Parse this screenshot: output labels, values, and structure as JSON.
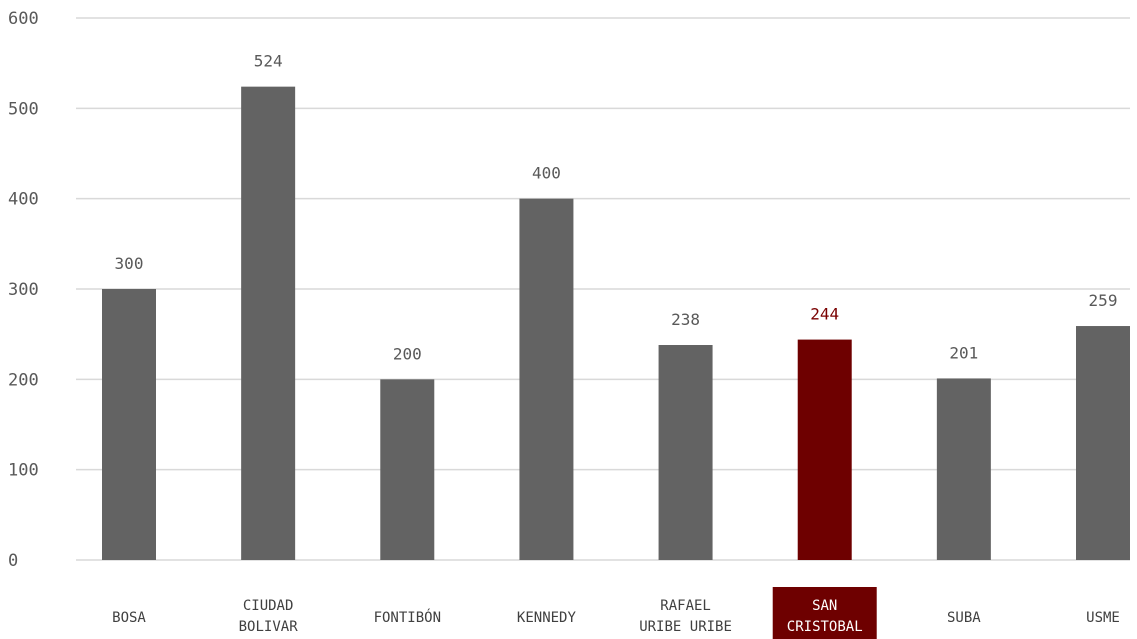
{
  "chart_data": {
    "type": "bar",
    "categories": [
      [
        "BOSA"
      ],
      [
        "CIUDAD",
        "BOLIVAR"
      ],
      [
        "FONTIBÓN"
      ],
      [
        "KENNEDY"
      ],
      [
        "RAFAEL",
        "URIBE URIBE"
      ],
      [
        "SAN",
        "CRISTOBAL"
      ],
      [
        "SUBA"
      ],
      [
        "USME"
      ]
    ],
    "values": [
      300,
      524,
      200,
      400,
      238,
      244,
      201,
      259
    ],
    "highlight_index": 5,
    "ylim": [
      0,
      600
    ],
    "yticks": [
      0,
      100,
      200,
      300,
      400,
      500,
      600
    ],
    "grid": true,
    "colors": {
      "bar": "#636363",
      "highlight": "#6e0000",
      "highlight_label": "#7a0000",
      "grid": "#d9d9d9"
    }
  }
}
